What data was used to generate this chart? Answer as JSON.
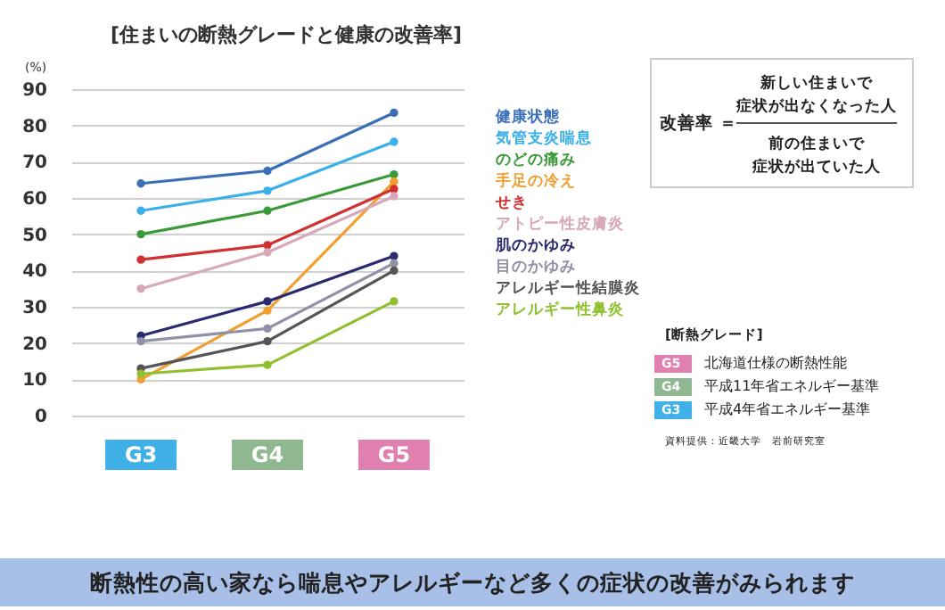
{
  "chart_data": {
    "type": "line",
    "title": "[住まいの断熱グレードと健康の改善率]",
    "ylabel": "(%)",
    "categories": [
      "G3",
      "G4",
      "G5"
    ],
    "series": [
      {
        "name": "健康状態",
        "color": "#3a6fb8",
        "values": [
          64,
          67.5,
          83.5
        ]
      },
      {
        "name": "気管支炎喘息",
        "color": "#3bb0e8",
        "values": [
          56.5,
          62,
          75.5
        ]
      },
      {
        "name": "のどの痛み",
        "color": "#3a9a3a",
        "values": [
          50,
          56.5,
          66.5
        ]
      },
      {
        "name": "手足の冷え",
        "color": "#f0a030",
        "values": [
          10,
          29,
          64.5
        ]
      },
      {
        "name": "せき",
        "color": "#d03030",
        "values": [
          43,
          47,
          62.5
        ]
      },
      {
        "name": "アトピー性皮膚炎",
        "color": "#d8a8b8",
        "values": [
          35,
          45,
          60.5
        ]
      },
      {
        "name": "肌のかゆみ",
        "color": "#2a2a70",
        "values": [
          22,
          31.5,
          44
        ]
      },
      {
        "name": "目のかゆみ",
        "color": "#9090a8",
        "values": [
          20.5,
          24,
          42
        ]
      },
      {
        "name": "アレルギー性結膜炎",
        "color": "#555555",
        "values": [
          13,
          20.5,
          40
        ]
      },
      {
        "name": "アレルギー性鼻炎",
        "color": "#90c030",
        "values": [
          11.5,
          14,
          31.5
        ]
      }
    ],
    "ylim": [
      0,
      90
    ],
    "yticks": [
      0,
      10,
      20,
      30,
      40,
      50,
      60,
      70,
      80,
      90
    ],
    "grid": "y",
    "legend": "right",
    "marker": "circle",
    "line_style": "solid",
    "annotations": [
      "改善率 ＝",
      "新しい住まいで",
      "症状が出なくなった人",
      "前の住まいで",
      "症状が出ていた人",
      "[断熱グレード]",
      "G5",
      "北海道仕様の断熱性能",
      "G4",
      "平成11年省エネルギー基準",
      "G3",
      "平成4年省エネルギー基準",
      "資料提供：近畿大学　岩前研究室",
      "断熱性の高い家なら喘息やアレルギーなど多くの症状の改善がみられます"
    ]
  }
}
